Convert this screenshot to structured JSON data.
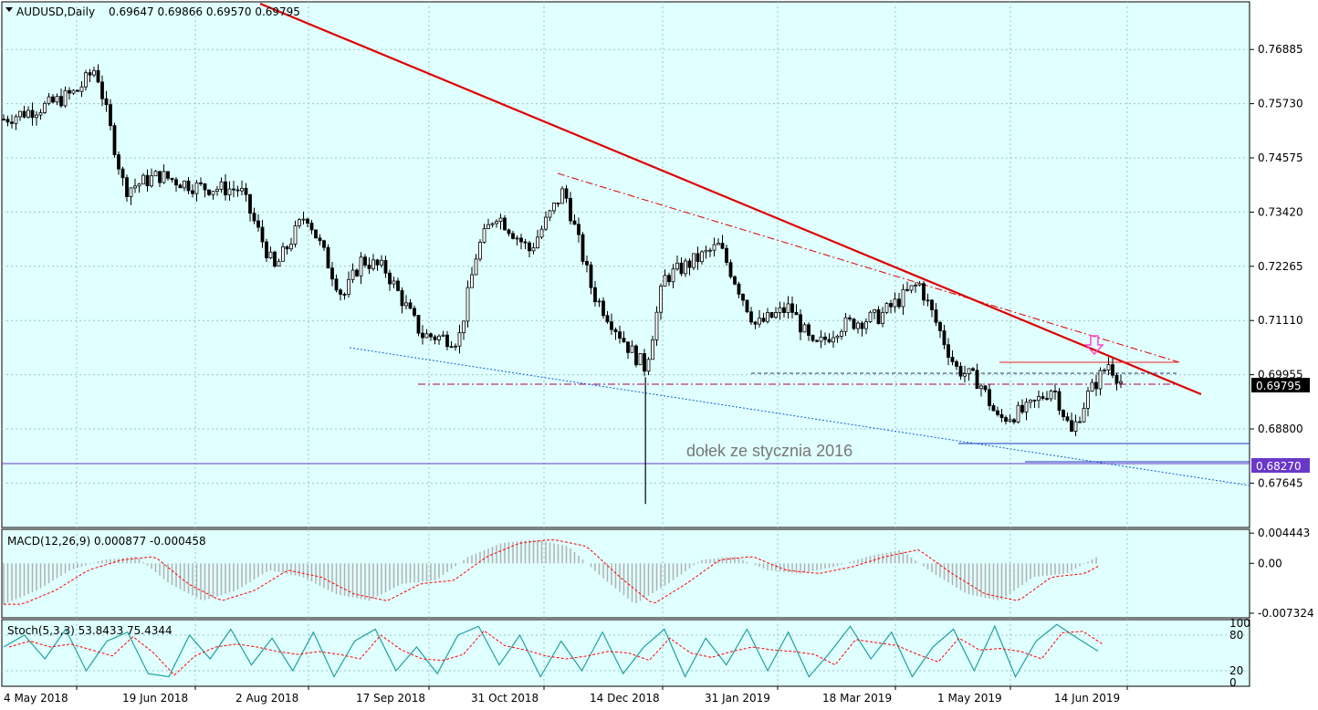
{
  "header": {
    "symbol": "AUDUSD,Daily",
    "ohlc": "0.69647 0.69866 0.69570 0.69795"
  },
  "colors": {
    "background": "#e0ffff",
    "grid": "#a0c4c4",
    "candle": "#000000",
    "main_trend": "#dd0000",
    "upper_channel": "#dd0000",
    "lower_channel": "#1060d0",
    "support_lines": "#2030c0",
    "purple_level": "#6a38c8",
    "arrow": "#ff44cc",
    "macd_hist": "#b0b0b0",
    "macd_signal": "#ff0000",
    "stoch_main": "#20a0a0",
    "stoch_signal": "#ff0000",
    "current_price_box": "#ffffff",
    "price_box_bg": "#000000"
  },
  "chart_data": {
    "type": "candlestick",
    "title": "AUDUSD,Daily",
    "x_axis_labels": [
      "4 May 2018",
      "19 Jun 2018",
      "2 Aug 2018",
      "17 Sep 2018",
      "31 Oct 2018",
      "14 Dec 2018",
      "31 Jan 2019",
      "18 Mar 2019",
      "1 May 2019",
      "14 Jun 2019"
    ],
    "y_axis_labels": [
      "0.76885",
      "0.75730",
      "0.74575",
      "0.73420",
      "0.72265",
      "0.71110",
      "0.69955",
      "0.68800",
      "0.67645"
    ],
    "ylim": [
      0.667,
      0.779
    ],
    "current_price": "0.69795",
    "purple_level_label": "0.68270",
    "annotation": "dołek ze stycznia 2016",
    "close_path": [
      {
        "date": "4 May 2018",
        "close": 0.754
      },
      {
        "date": "21 May 2018",
        "close": 0.757
      },
      {
        "date": "1 Jun 2018",
        "close": 0.76
      },
      {
        "date": "8 Jun 2018",
        "close": 0.765
      },
      {
        "date": "19 Jun 2018",
        "close": 0.739
      },
      {
        "date": "2 Jul 2018",
        "close": 0.742
      },
      {
        "date": "17 Jul 2018",
        "close": 0.7395
      },
      {
        "date": "2 Aug 2018",
        "close": 0.739
      },
      {
        "date": "15 Aug 2018",
        "close": 0.722
      },
      {
        "date": "27 Aug 2018",
        "close": 0.734
      },
      {
        "date": "10 Sep 2018",
        "close": 0.716
      },
      {
        "date": "17 Sep 2018",
        "close": 0.724
      },
      {
        "date": "26 Sep 2018",
        "close": 0.722
      },
      {
        "date": "10 Oct 2018",
        "close": 0.708
      },
      {
        "date": "24 Oct 2018",
        "close": 0.707
      },
      {
        "date": "31 Oct 2018",
        "close": 0.726
      },
      {
        "date": "7 Nov 2018",
        "close": 0.734
      },
      {
        "date": "20 Nov 2018",
        "close": 0.726
      },
      {
        "date": "3 Dec 2018",
        "close": 0.739
      },
      {
        "date": "14 Dec 2018",
        "close": 0.717
      },
      {
        "date": "28 Dec 2018",
        "close": 0.705
      },
      {
        "date": "3 Jan 2019",
        "close": 0.701
      },
      {
        "date": "10 Jan 2019",
        "close": 0.72
      },
      {
        "date": "31 Jan 2019",
        "close": 0.727
      },
      {
        "date": "14 Feb 2019",
        "close": 0.71
      },
      {
        "date": "27 Feb 2019",
        "close": 0.714
      },
      {
        "date": "8 Mar 2019",
        "close": 0.705
      },
      {
        "date": "18 Mar 2019",
        "close": 0.71
      },
      {
        "date": "2 Apr 2019",
        "close": 0.712
      },
      {
        "date": "17 Apr 2019",
        "close": 0.719
      },
      {
        "date": "1 May 2019",
        "close": 0.701
      },
      {
        "date": "10 May 2019",
        "close": 0.698
      },
      {
        "date": "17 May 2019",
        "close": 0.69
      },
      {
        "date": "28 May 2019",
        "close": 0.692
      },
      {
        "date": "7 Jun 2019",
        "close": 0.697
      },
      {
        "date": "14 Jun 2019",
        "close": 0.687
      },
      {
        "date": "20 Jun 2019",
        "close": 0.695
      },
      {
        "date": "28 Jun 2019",
        "close": 0.702
      },
      {
        "date": "3 Jul 2019",
        "close": 0.69795
      }
    ],
    "flash_crash": {
      "date": "3 Jan 2019",
      "low": 0.672
    },
    "macd": {
      "label": "MACD(12,26,9) 0.000877 -0.000458",
      "y_axis_labels": [
        "0.004443",
        "0.00",
        "-0.007324"
      ],
      "ylim": [
        -0.008,
        0.005
      ],
      "path": [
        -0.006,
        -0.004,
        -0.001,
        0.0005,
        0.001,
        -0.003,
        -0.0055,
        -0.004,
        -0.001,
        -0.002,
        -0.0045,
        -0.0055,
        -0.003,
        -0.0025,
        0.001,
        0.003,
        0.0035,
        0.0025,
        -0.002,
        -0.006,
        -0.003,
        0.0005,
        0.001,
        -0.001,
        -0.0015,
        -0.0005,
        0.001,
        0.002,
        -0.0015,
        -0.0045,
        -0.0055,
        -0.002,
        -0.0015,
        0.0012
      ]
    },
    "stochastic": {
      "label": "Stoch(5,3,3) 53.8433 75.4344",
      "y_axis_labels": [
        "100",
        "80",
        "20",
        "0"
      ],
      "ylim": [
        0,
        100
      ],
      "path": [
        60,
        80,
        40,
        90,
        20,
        70,
        85,
        15,
        10,
        80,
        40,
        90,
        30,
        75,
        20,
        85,
        10,
        70,
        90,
        20,
        60,
        15,
        80,
        95,
        30,
        80,
        10,
        70,
        20,
        85,
        15,
        60,
        90,
        10,
        75,
        30,
        90,
        20,
        85,
        10,
        50,
        95,
        40,
        85,
        10,
        60,
        90,
        20,
        95,
        10,
        70,
        98,
        75,
        53
      ]
    }
  }
}
